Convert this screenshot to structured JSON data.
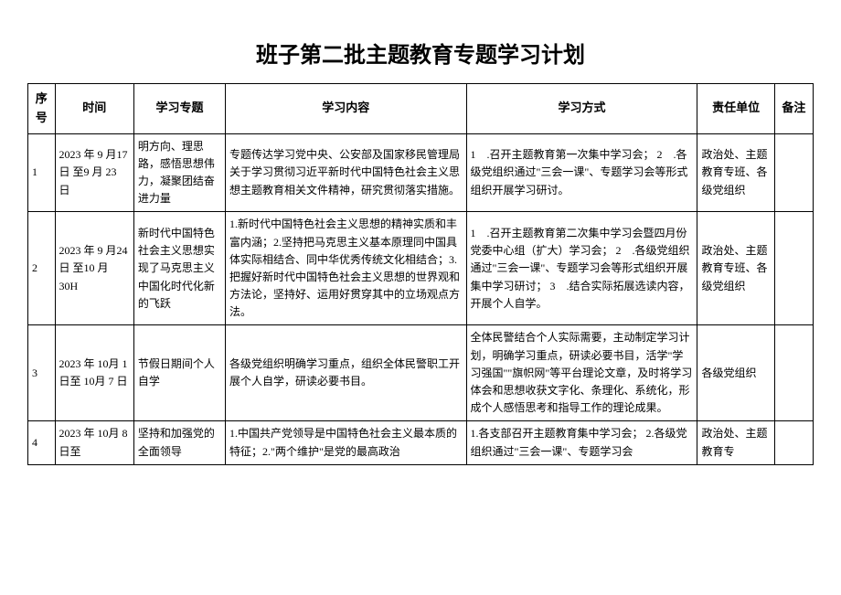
{
  "title": "班子第二批主题教育专题学习计划",
  "headers": {
    "seq": "序号",
    "time": "时间",
    "topic": "学习专题",
    "content": "学习内容",
    "method": "学习方式",
    "unit": "责任单位",
    "note": "备注"
  },
  "rows": [
    {
      "seq": "1",
      "time": "2023 年 9 月17 日 至9 月 23 日",
      "topic": "明方向、理思路，感悟思想伟力，凝聚团结奋进力量",
      "content": "专题传达学习党中央、公安部及国家移民管理局关于学习贯彻习近平新时代中国特色社会主义思想主题教育相关文件精神，研究贯彻落实措施。",
      "method": "1    .召开主题教育第一次集中学习会；\n2    .各级党组织通过\"三会一课\"、专题学习会等形式组织开展学习研讨。",
      "unit": "政治处、主题教育专班、各级党组织",
      "note": ""
    },
    {
      "seq": "2",
      "time": "2023 年 9 月24 日 至10 月 30H",
      "topic": "新时代中国特色社会主义思想实现了马克思主义中国化时代化新的飞跃",
      "content": "1.新时代中国特色社会主义思想的精神实质和丰富内涵；2.坚持把马克思主义基本原理同中国具体实际相结合、同中华优秀传统文化相结合；3.把握好新时代中国特色社会主义思想的世界观和方法论，坚持好、运用好贯穿其中的立场观点方法。",
      "method": "1    .召开主题教育第二次集中学习会暨四月份党委中心组（扩大）学习会；\n2    .各级党组织通过\"三会一课\"、专题学习会等形式组织开展集中学习研讨；\n3    .结合实际拓展选读内容，开展个人自学。",
      "unit": "政治处、主题教育专班、各级党组织",
      "note": ""
    },
    {
      "seq": "3",
      "time": "2023 年 10月 1 日至 10月 7 日",
      "topic": "节假日期间个人自学",
      "content": "各级党组织明确学习重点，组织全体民警职工开展个人自学，研读必要书目。",
      "method": "全体民警结合个人实际需要，主动制定学习计划，明确学习重点，研读必要书目，活学\"学习强国\"\"旗帜网\"等平台理论文章，及时将学习体会和思想收获文字化、条理化、系统化，形成个人感悟思考和指导工作的理论成果。",
      "unit": "各级党组织",
      "note": ""
    },
    {
      "seq": "4",
      "time": "2023 年 10月 8 日至",
      "topic": "坚持和加强党的全面领导",
      "content": "1.中国共产党领导是中国特色社会主义最本质的特征；2.\"两个维护\"是党的最高政治",
      "method": "1.各支部召开主题教育集中学习会；\n2.各级党组织通过\"三会一课\"、专题学习会",
      "unit": "政治处、主题教育专",
      "note": ""
    }
  ],
  "colors": {
    "border": "#000000",
    "background": "#ffffff",
    "text": "#000000"
  },
  "typography": {
    "title_fontsize": 24,
    "header_fontsize": 13,
    "cell_fontsize": 12
  }
}
